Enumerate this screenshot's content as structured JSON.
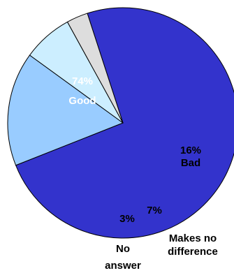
{
  "chart_data": {
    "type": "pie",
    "title": "",
    "slices": [
      {
        "name": "Good",
        "value": 74,
        "pct_label": "74%",
        "color": "#3333cc",
        "text_color": "#ffffff"
      },
      {
        "name": "Bad",
        "value": 16,
        "pct_label": "16%",
        "color": "#99ccff",
        "text_color": "#000000"
      },
      {
        "name": "Makes no difference",
        "value": 7,
        "pct_label": "7%",
        "color": "#cceeff",
        "text_color": "#000000"
      },
      {
        "name": "No answer",
        "value": 3,
        "pct_label": "3%",
        "color": "#dddddd",
        "text_color": "#000000"
      }
    ],
    "outside_labels": {
      "makes_no_difference_line1": "Makes no",
      "makes_no_difference_line2": "difference",
      "no_answer_line1": "No",
      "no_answer_line2": "answer"
    },
    "stroke_color": "#000000"
  }
}
